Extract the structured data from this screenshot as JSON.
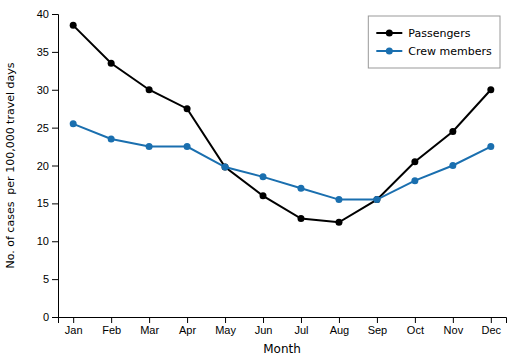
{
  "chart_data": {
    "type": "line",
    "xlabel": "Month",
    "ylabel": "No. of cases  per 100,000 travel days",
    "categories": [
      "Jan",
      "Feb",
      "Mar",
      "Apr",
      "May",
      "Jun",
      "Jul",
      "Aug",
      "Sep",
      "Oct",
      "Nov",
      "Dec"
    ],
    "series": [
      {
        "name": "Passengers",
        "color": "#000000",
        "marker": "circle",
        "values": [
          38.5,
          33.5,
          30.0,
          27.5,
          19.8,
          16.0,
          13.0,
          12.5,
          15.5,
          20.5,
          24.5,
          30.0
        ]
      },
      {
        "name": "Crew members",
        "color": "#1a6faf",
        "marker": "circle",
        "values": [
          25.5,
          23.5,
          22.5,
          22.5,
          19.8,
          18.5,
          17.0,
          15.5,
          15.5,
          18.0,
          20.0,
          22.5
        ]
      }
    ],
    "ylim": [
      0,
      40
    ],
    "yticks": [
      0,
      5,
      10,
      15,
      20,
      25,
      30,
      35,
      40
    ],
    "grid": false,
    "legend": "upper-right"
  }
}
